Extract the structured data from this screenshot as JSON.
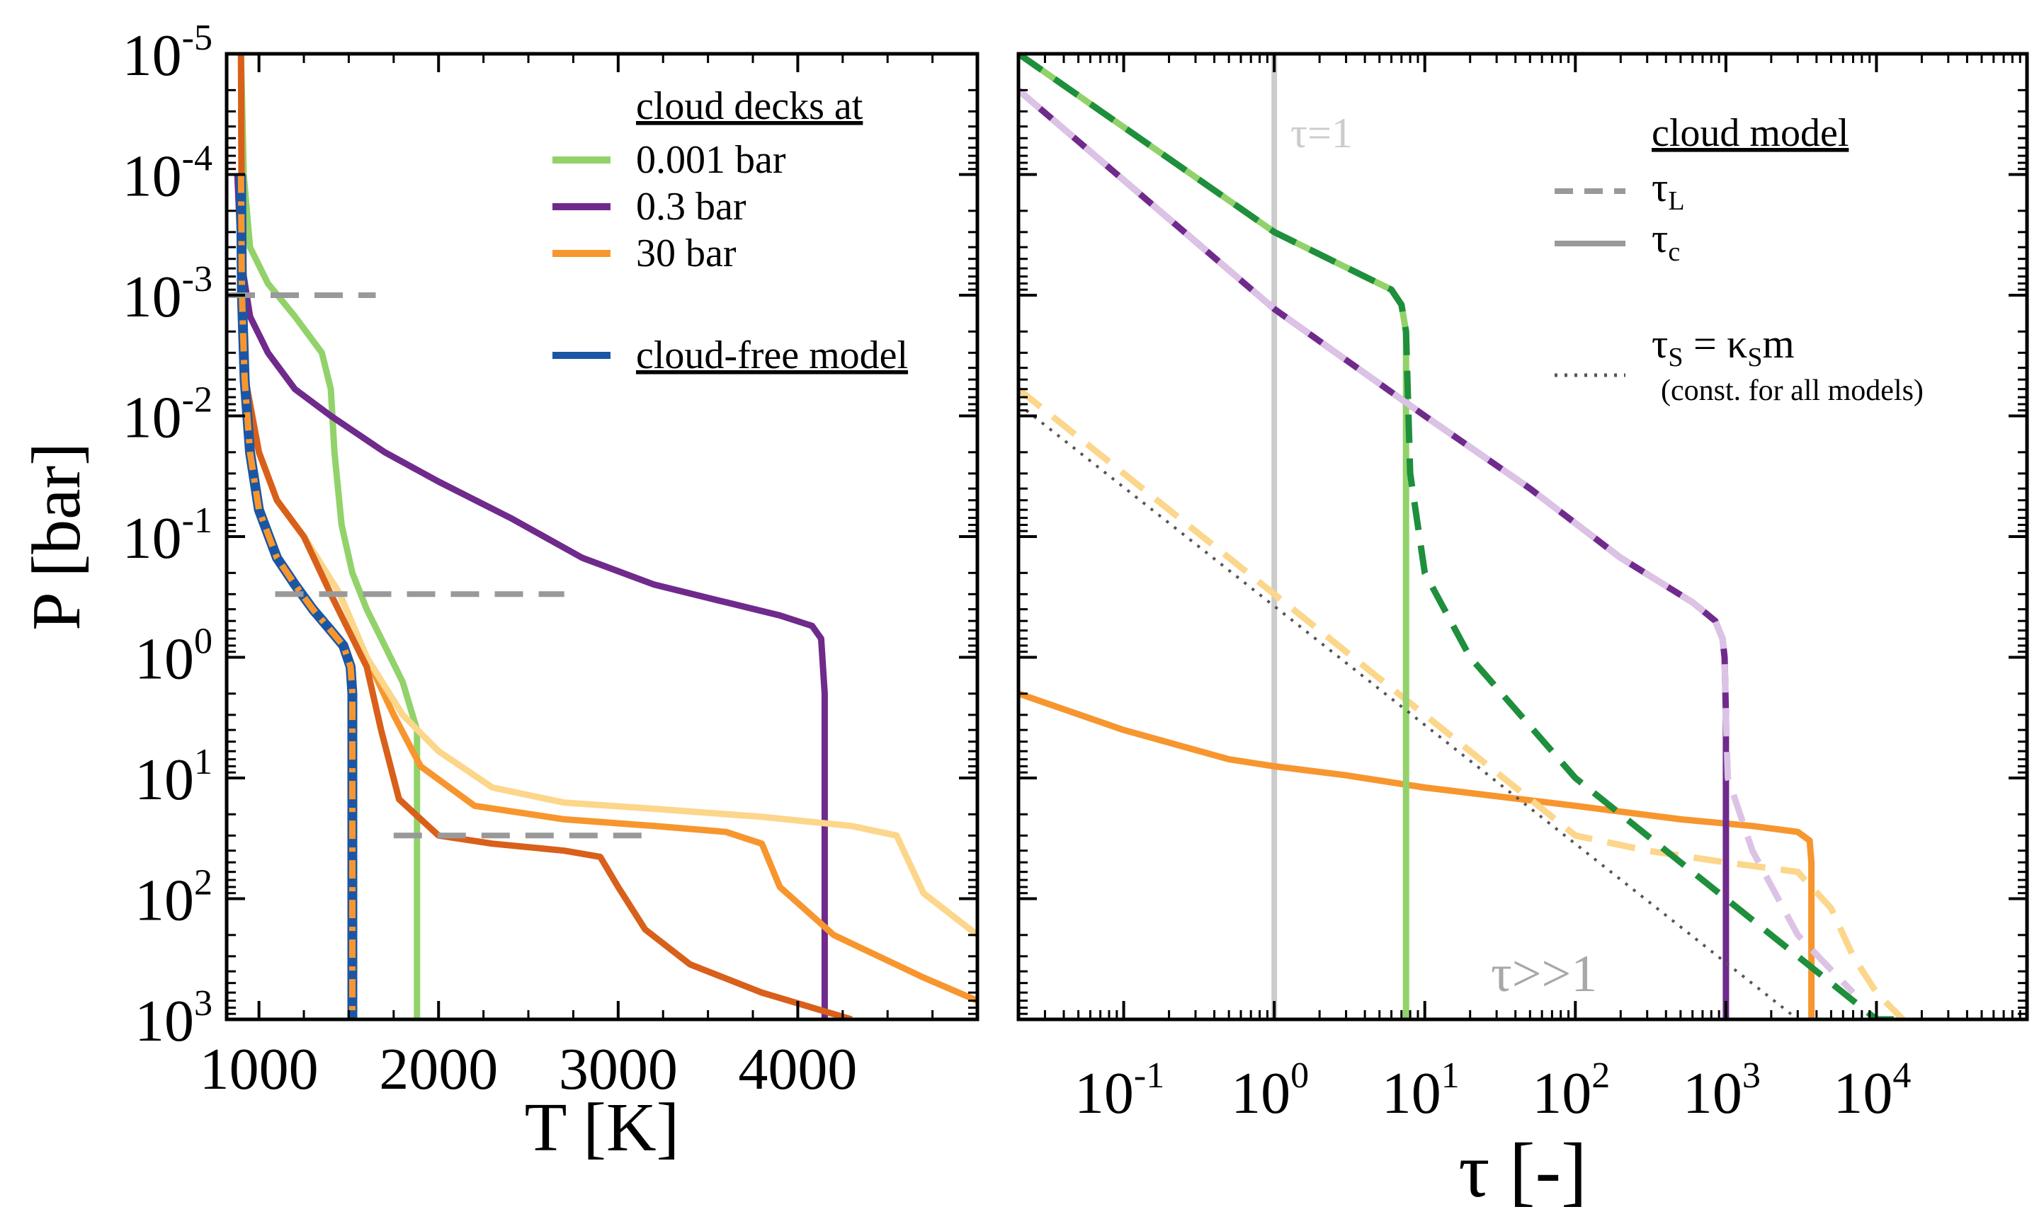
{
  "chart_data": [
    {
      "type": "line",
      "x_scale": "linear",
      "y_scale": "log",
      "y_inverted": true,
      "xlabel": "T [K]",
      "ylabel": "P [bar]",
      "xlim": [
        820,
        5000
      ],
      "ylim": [
        1e-05,
        1000
      ],
      "x_ticks": [
        "1000",
        "2000",
        "3000",
        "4000"
      ],
      "y_ticks": [
        {
          "base": "10",
          "exp": "-5"
        },
        {
          "base": "10",
          "exp": "-4"
        },
        {
          "base": "10",
          "exp": "-3"
        },
        {
          "base": "10",
          "exp": "-2"
        },
        {
          "base": "10",
          "exp": "-1"
        },
        {
          "base": "10",
          "exp": "0"
        },
        {
          "base": "10",
          "exp": "1"
        },
        {
          "base": "10",
          "exp": "2"
        },
        {
          "base": "10",
          "exp": "3"
        }
      ],
      "legend": {
        "title": "cloud decks at",
        "entries": [
          {
            "label": "0.001 bar",
            "color": "#92d26a"
          },
          {
            "label": "0.3 bar",
            "color": "#6f2a8c"
          },
          {
            "label": "30 bar",
            "color": "#f7962e"
          },
          {
            "label": "cloud-free model",
            "color": "#1a56a4"
          }
        ],
        "placement": "top-right"
      },
      "series": [
        {
          "name": "0.001 bar",
          "color": "#92d26a",
          "style": "solid",
          "x": [
            900,
            915,
            950,
            1050,
            1200,
            1350,
            1400,
            1420,
            1460,
            1520,
            1600,
            1700,
            1800,
            1880,
            1880
          ],
          "y": [
            1e-05,
            0.0001,
            0.0004,
            0.0008,
            0.0015,
            0.003,
            0.006,
            0.02,
            0.08,
            0.2,
            0.4,
            0.8,
            1.6,
            4,
            1000
          ]
        },
        {
          "name": "0.3 bar",
          "color": "#6f2a8c",
          "style": "solid",
          "x": [
            880,
            900,
            950,
            1050,
            1200,
            1400,
            1700,
            2000,
            2400,
            2800,
            3200,
            3600,
            3900,
            4080,
            4130,
            4150,
            4150
          ],
          "y": [
            0.0001,
            0.0005,
            0.0015,
            0.003,
            0.006,
            0.01,
            0.02,
            0.035,
            0.07,
            0.15,
            0.25,
            0.35,
            0.45,
            0.55,
            0.7,
            2,
            1000
          ]
        },
        {
          "name": "30 bar",
          "color": "#f7962e",
          "style": "solid",
          "x": [
            900,
            905,
            925,
            1000,
            1100,
            1250,
            1450,
            1600,
            1750,
            1900,
            2200,
            2700,
            3200,
            3600,
            3800,
            3900,
            4200,
            4700,
            5000
          ],
          "y": [
            1e-05,
            0.001,
            0.005,
            0.02,
            0.05,
            0.1,
            0.3,
            1,
            3,
            8,
            17,
            22,
            25,
            28,
            35,
            80,
            200,
            450,
            700
          ]
        },
        {
          "name": "",
          "color": "#fcd68a",
          "style": "solid",
          "x": [
            900,
            905,
            925,
            1000,
            1100,
            1250,
            1450,
            1600,
            1800,
            2000,
            2300,
            2700,
            3200,
            3800,
            4300,
            4550,
            4700,
            5000
          ],
          "y": [
            1e-05,
            0.001,
            0.005,
            0.02,
            0.05,
            0.1,
            0.3,
            1,
            3,
            6,
            12,
            16,
            18,
            21,
            25,
            30,
            90,
            200
          ]
        },
        {
          "name": "",
          "color": "#d8601a",
          "style": "solid",
          "x": [
            900,
            905,
            925,
            1000,
            1100,
            1250,
            1400,
            1500,
            1600,
            1680,
            1780,
            2000,
            2300,
            2700,
            2900,
            3000,
            3150,
            3400,
            3800,
            4300
          ],
          "y": [
            1e-05,
            0.001,
            0.005,
            0.02,
            0.05,
            0.1,
            0.3,
            0.6,
            1.2,
            4,
            15,
            30,
            35,
            40,
            45,
            80,
            180,
            350,
            600,
            1000
          ]
        },
        {
          "name": "cloud-free model",
          "color": "#1a56a4",
          "style": "solid",
          "x": [
            900,
            905,
            920,
            950,
            1000,
            1100,
            1200,
            1300,
            1400,
            1470,
            1510,
            1520,
            1520
          ],
          "y": [
            0.0001,
            0.001,
            0.005,
            0.02,
            0.06,
            0.15,
            0.25,
            0.4,
            0.6,
            0.8,
            1.2,
            2,
            1000
          ]
        },
        {
          "name": "",
          "color": "#f7962e",
          "style": "dash-dot",
          "x": [
            900,
            905,
            920,
            950,
            1000,
            1100,
            1200,
            1300,
            1400,
            1470,
            1510,
            1520,
            1520
          ],
          "y": [
            0.0001,
            0.001,
            0.005,
            0.02,
            0.06,
            0.15,
            0.25,
            0.4,
            0.6,
            0.8,
            1.2,
            2,
            1000
          ]
        },
        {
          "name": "",
          "color": "#999999",
          "style": "dashed",
          "x": [
            820,
            1650
          ],
          "y": [
            0.001,
            0.001
          ]
        },
        {
          "name": "",
          "color": "#999999",
          "style": "dashed",
          "x": [
            1090,
            2700
          ],
          "y": [
            0.3,
            0.3
          ]
        },
        {
          "name": "",
          "color": "#999999",
          "style": "dashed",
          "x": [
            1750,
            3150
          ],
          "y": [
            30,
            30
          ]
        }
      ]
    },
    {
      "type": "line",
      "x_scale": "log",
      "y_scale": "log",
      "y_inverted": true,
      "xlabel": "τ [-]",
      "ylabel": "",
      "xlim": [
        0.02,
        100000
      ],
      "ylim": [
        1e-05,
        1000
      ],
      "x_ticks": [
        {
          "base": "10",
          "exp": "-1"
        },
        {
          "base": "10",
          "exp": "0"
        },
        {
          "base": "10",
          "exp": "1"
        },
        {
          "base": "10",
          "exp": "2"
        },
        {
          "base": "10",
          "exp": "3"
        },
        {
          "base": "10",
          "exp": "4"
        }
      ],
      "annotations": {
        "tau_one": "τ=1",
        "tau_large": "τ>>1"
      },
      "legend": {
        "title": "cloud model",
        "entries": [
          {
            "label": "τ",
            "sub": "L",
            "color": "#999999",
            "style": "dashed"
          },
          {
            "label": "τ",
            "sub": "c",
            "color": "#999999",
            "style": "solid"
          },
          {
            "label": "τ",
            "sub": "S",
            "rest": " = κ",
            "sub2": "S",
            "tail": "m",
            "note": "(const. for all models)",
            "color": "#555555",
            "style": "dotted"
          }
        ],
        "placement": "top-right"
      },
      "series": [
        {
          "name": "",
          "color": "#cccccc",
          "style": "solid",
          "x": [
            1,
            1
          ],
          "y": [
            1e-05,
            1000
          ]
        },
        {
          "name": "",
          "color": "#f7962e",
          "style": "solid",
          "x": [
            0.02,
            0.1,
            0.5,
            1,
            3,
            10,
            100,
            500,
            1500,
            3000,
            3600,
            3700,
            3700
          ],
          "y": [
            2,
            4,
            7,
            8,
            9.5,
            12,
            17,
            22,
            25,
            28,
            33,
            50,
            1000
          ]
        },
        {
          "name": "",
          "color": "#fcd68a",
          "style": "dashed",
          "x": [
            0.02,
            0.1,
            1,
            10,
            100,
            300,
            1000,
            3000,
            5000,
            7000,
            10000,
            15000
          ],
          "y": [
            0.006,
            0.03,
            0.3,
            3,
            30,
            40,
            50,
            60,
            120,
            300,
            600,
            1000
          ]
        },
        {
          "name": "",
          "color": "#92d26a",
          "style": "solid",
          "x": [
            0.02,
            1,
            6,
            7,
            7.5,
            7.5
          ],
          "y": [
            1e-05,
            0.0003,
            0.0009,
            0.0012,
            0.002,
            1000
          ]
        },
        {
          "name": "",
          "color": "#1e8f3c",
          "style": "dashed",
          "x": [
            0.02,
            1,
            6,
            7,
            7.5,
            8,
            10,
            20,
            100,
            1000,
            10000,
            14000
          ],
          "y": [
            1e-05,
            0.0003,
            0.0009,
            0.0012,
            0.002,
            0.03,
            0.2,
            1,
            10,
            100,
            1000,
            1000
          ]
        },
        {
          "name": "",
          "color": "#6f2a8c",
          "style": "solid",
          "x": [
            0.02,
            1,
            10,
            50,
            200,
            600,
            850,
            950,
            980,
            1000,
            1000
          ],
          "y": [
            2e-05,
            0.0013,
            0.01,
            0.04,
            0.15,
            0.35,
            0.5,
            0.7,
            1,
            3,
            1000
          ]
        },
        {
          "name": "",
          "color": "#dcc3e6",
          "style": "dashed",
          "x": [
            0.02,
            1,
            10,
            50,
            200,
            600,
            850,
            950,
            980,
            1000,
            1030,
            1500,
            3000,
            7000
          ],
          "y": [
            2e-05,
            0.0013,
            0.01,
            0.04,
            0.15,
            0.35,
            0.5,
            0.7,
            1,
            3,
            10,
            40,
            200,
            600
          ]
        },
        {
          "name": "",
          "color": "#555555",
          "style": "dotted",
          "x": [
            0.02,
            3000
          ],
          "y": [
            0.008,
            1000
          ]
        }
      ]
    }
  ]
}
